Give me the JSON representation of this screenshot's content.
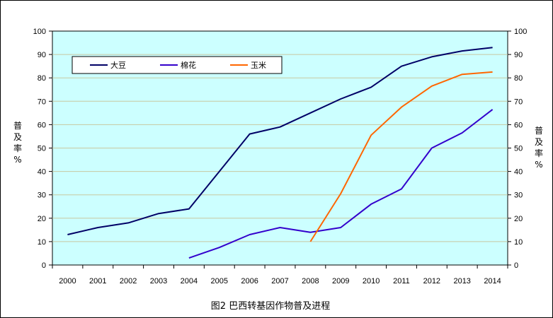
{
  "chart_data": {
    "type": "line",
    "title": "图2 巴西转基因作物普及进程",
    "ylabel_left": [
      "普",
      "及",
      "率",
      "%"
    ],
    "ylabel_right": [
      "普",
      "及",
      "率",
      "%"
    ],
    "x": [
      "2000",
      "2001",
      "2002",
      "2003",
      "2004",
      "2005",
      "2006",
      "2007",
      "2008",
      "2009",
      "2010",
      "2011",
      "2012",
      "2013",
      "2014"
    ],
    "ylim": [
      0,
      100
    ],
    "yticks": [
      "0",
      "10",
      "20",
      "30",
      "40",
      "50",
      "60",
      "70",
      "80",
      "90",
      "100"
    ],
    "grid": true,
    "legend_position": "top-left",
    "plot_background": "#ccffff",
    "grid_color": "#c8c8a0",
    "series": [
      {
        "name": "大豆",
        "color": "#000066",
        "values": [
          13,
          16,
          18,
          22,
          24,
          40,
          56,
          59,
          65,
          71,
          76,
          85,
          89,
          91.5,
          93
        ]
      },
      {
        "name": "棉花",
        "color": "#3300cc",
        "values": [
          null,
          null,
          null,
          null,
          3,
          7.5,
          13,
          16,
          14,
          16,
          26,
          32.5,
          50,
          56.5,
          66.5
        ]
      },
      {
        "name": "玉米",
        "color": "#ff6600",
        "values": [
          null,
          null,
          null,
          null,
          null,
          null,
          null,
          null,
          10,
          30.5,
          55.5,
          67.5,
          76.5,
          81.5,
          82.5
        ]
      }
    ]
  }
}
